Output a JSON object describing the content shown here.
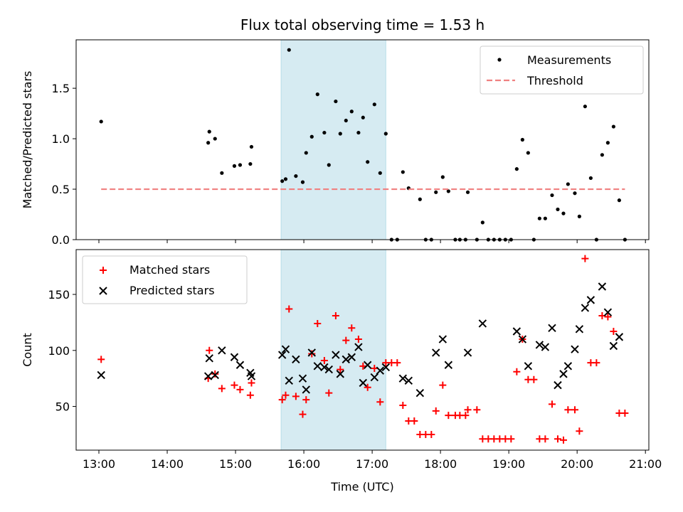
{
  "chart_data": [
    {
      "type": "scatter",
      "title": "Flux total observing time = 1.53 h",
      "xlabel": "",
      "ylabel": "Matched/Predicted stars",
      "xlim": [
        "12:40",
        "21:03"
      ],
      "ylim": [
        0.0,
        1.98
      ],
      "yticks": [
        "0.0",
        "0.5",
        "1.0",
        "1.5"
      ],
      "legend_position": "upper right",
      "shaded_span": {
        "from": "15:40",
        "to": "17:12",
        "color": "#add8e6"
      },
      "series": [
        {
          "name": "Measurements",
          "marker": "dot",
          "color": "#000000",
          "points": [
            [
              "13:02",
              1.17
            ],
            [
              "14:36",
              0.96
            ],
            [
              "14:37",
              1.07
            ],
            [
              "14:42",
              1.0
            ],
            [
              "14:48",
              0.66
            ],
            [
              "14:59",
              0.73
            ],
            [
              "15:04",
              0.74
            ],
            [
              "15:13",
              0.75
            ],
            [
              "15:14",
              0.92
            ],
            [
              "15:41",
              0.58
            ],
            [
              "15:44",
              0.6
            ],
            [
              "15:47",
              1.88
            ],
            [
              "15:53",
              0.63
            ],
            [
              "15:59",
              0.57
            ],
            [
              "16:02",
              0.86
            ],
            [
              "16:07",
              1.02
            ],
            [
              "16:12",
              1.44
            ],
            [
              "16:18",
              1.06
            ],
            [
              "16:22",
              0.74
            ],
            [
              "16:28",
              1.37
            ],
            [
              "16:32",
              1.05
            ],
            [
              "16:37",
              1.18
            ],
            [
              "16:42",
              1.27
            ],
            [
              "16:48",
              1.06
            ],
            [
              "16:52",
              1.21
            ],
            [
              "16:56",
              0.77
            ],
            [
              "17:02",
              1.34
            ],
            [
              "17:07",
              0.66
            ],
            [
              "17:12",
              1.05
            ],
            [
              "17:17",
              0.0
            ],
            [
              "17:22",
              0.0
            ],
            [
              "17:27",
              0.67
            ],
            [
              "17:32",
              0.51
            ],
            [
              "17:42",
              0.4
            ],
            [
              "17:47",
              0.0
            ],
            [
              "17:52",
              0.0
            ],
            [
              "17:56",
              0.47
            ],
            [
              "18:02",
              0.62
            ],
            [
              "18:07",
              0.48
            ],
            [
              "18:13",
              0.0
            ],
            [
              "18:17",
              0.0
            ],
            [
              "18:22",
              0.0
            ],
            [
              "18:24",
              0.47
            ],
            [
              "18:32",
              0.0
            ],
            [
              "18:37",
              0.17
            ],
            [
              "18:42",
              0.0
            ],
            [
              "18:47",
              0.0
            ],
            [
              "18:52",
              0.0
            ],
            [
              "18:57",
              0.0
            ],
            [
              "19:02",
              0.0
            ],
            [
              "19:07",
              0.7
            ],
            [
              "19:12",
              0.99
            ],
            [
              "19:17",
              0.86
            ],
            [
              "19:22",
              0.0
            ],
            [
              "19:27",
              0.21
            ],
            [
              "19:32",
              0.21
            ],
            [
              "19:38",
              0.44
            ],
            [
              "19:43",
              0.3
            ],
            [
              "19:48",
              0.26
            ],
            [
              "19:52",
              0.55
            ],
            [
              "19:58",
              0.46
            ],
            [
              "20:02",
              0.23
            ],
            [
              "20:07",
              1.32
            ],
            [
              "20:12",
              0.61
            ],
            [
              "20:17",
              0.0
            ],
            [
              "20:22",
              0.84
            ],
            [
              "20:27",
              0.96
            ],
            [
              "20:32",
              1.12
            ],
            [
              "20:37",
              0.39
            ],
            [
              "20:42",
              0.0
            ]
          ]
        },
        {
          "name": "Threshold",
          "marker": "dashed-line",
          "color": "#f08080",
          "points": [
            [
              "13:02",
              0.5
            ],
            [
              "20:42",
              0.5
            ]
          ]
        }
      ]
    },
    {
      "type": "scatter",
      "title": "",
      "xlabel": "Time (UTC)",
      "ylabel": "Count",
      "xlim": [
        "12:40",
        "21:03"
      ],
      "ylim": [
        11,
        190
      ],
      "yticks": [
        "50",
        "100",
        "150"
      ],
      "xticks": [
        "13:00",
        "14:00",
        "15:00",
        "16:00",
        "17:00",
        "18:00",
        "19:00",
        "20:00",
        "21:00"
      ],
      "legend_position": "upper left",
      "shaded_span": {
        "from": "15:40",
        "to": "17:12",
        "color": "#add8e6"
      },
      "series": [
        {
          "name": "Matched stars",
          "marker": "plus",
          "color": "#ff0000",
          "points": [
            [
              "13:02",
              92
            ],
            [
              "14:36",
              75
            ],
            [
              "14:37",
              100
            ],
            [
              "14:42",
              79
            ],
            [
              "14:48",
              66
            ],
            [
              "14:59",
              69
            ],
            [
              "15:04",
              65
            ],
            [
              "15:13",
              60
            ],
            [
              "15:14",
              71
            ],
            [
              "15:41",
              56
            ],
            [
              "15:44",
              60
            ],
            [
              "15:47",
              137
            ],
            [
              "15:53",
              59
            ],
            [
              "15:59",
              43
            ],
            [
              "16:02",
              56
            ],
            [
              "16:07",
              97
            ],
            [
              "16:12",
              124
            ],
            [
              "16:18",
              91
            ],
            [
              "16:22",
              62
            ],
            [
              "16:28",
              131
            ],
            [
              "16:32",
              83
            ],
            [
              "16:37",
              109
            ],
            [
              "16:42",
              120
            ],
            [
              "16:48",
              110
            ],
            [
              "16:52",
              86
            ],
            [
              "16:56",
              67
            ],
            [
              "17:02",
              84
            ],
            [
              "17:07",
              54
            ],
            [
              "17:12",
              89
            ],
            [
              "17:17",
              89
            ],
            [
              "17:22",
              89
            ],
            [
              "17:27",
              51
            ],
            [
              "17:32",
              37
            ],
            [
              "17:37",
              37
            ],
            [
              "17:42",
              25
            ],
            [
              "17:47",
              25
            ],
            [
              "17:52",
              25
            ],
            [
              "17:56",
              46
            ],
            [
              "18:02",
              69
            ],
            [
              "18:07",
              42
            ],
            [
              "18:13",
              42
            ],
            [
              "18:17",
              42
            ],
            [
              "18:22",
              42
            ],
            [
              "18:24",
              47
            ],
            [
              "18:32",
              47
            ],
            [
              "18:37",
              21
            ],
            [
              "18:42",
              21
            ],
            [
              "18:47",
              21
            ],
            [
              "18:52",
              21
            ],
            [
              "18:57",
              21
            ],
            [
              "19:02",
              21
            ],
            [
              "19:07",
              81
            ],
            [
              "19:12",
              110
            ],
            [
              "19:17",
              74
            ],
            [
              "19:22",
              74
            ],
            [
              "19:27",
              21
            ],
            [
              "19:32",
              21
            ],
            [
              "19:38",
              52
            ],
            [
              "19:43",
              21
            ],
            [
              "19:48",
              20
            ],
            [
              "19:52",
              47
            ],
            [
              "19:58",
              47
            ],
            [
              "20:02",
              28
            ],
            [
              "20:07",
              182
            ],
            [
              "20:12",
              89
            ],
            [
              "20:17",
              89
            ],
            [
              "20:22",
              131
            ],
            [
              "20:27",
              130
            ],
            [
              "20:32",
              117
            ],
            [
              "20:37",
              44
            ],
            [
              "20:42",
              44
            ]
          ]
        },
        {
          "name": "Predicted stars",
          "marker": "x",
          "color": "#000000",
          "points": [
            [
              "13:02",
              78
            ],
            [
              "14:36",
              77
            ],
            [
              "14:37",
              93
            ],
            [
              "14:42",
              78
            ],
            [
              "14:48",
              100
            ],
            [
              "14:59",
              94
            ],
            [
              "15:04",
              87
            ],
            [
              "15:13",
              80
            ],
            [
              "15:14",
              77
            ],
            [
              "15:41",
              96
            ],
            [
              "15:44",
              101
            ],
            [
              "15:47",
              73
            ],
            [
              "15:53",
              92
            ],
            [
              "15:59",
              75
            ],
            [
              "16:02",
              65
            ],
            [
              "16:07",
              98
            ],
            [
              "16:12",
              86
            ],
            [
              "16:18",
              85
            ],
            [
              "16:22",
              83
            ],
            [
              "16:28",
              96
            ],
            [
              "16:32",
              79
            ],
            [
              "16:37",
              92
            ],
            [
              "16:42",
              94
            ],
            [
              "16:48",
              103
            ],
            [
              "16:52",
              71
            ],
            [
              "16:56",
              87
            ],
            [
              "17:02",
              76
            ],
            [
              "17:07",
              82
            ],
            [
              "17:12",
              85
            ],
            [
              "17:27",
              75
            ],
            [
              "17:32",
              73
            ],
            [
              "17:42",
              62
            ],
            [
              "17:56",
              98
            ],
            [
              "18:02",
              110
            ],
            [
              "18:07",
              87
            ],
            [
              "18:24",
              98
            ],
            [
              "18:37",
              124
            ],
            [
              "19:07",
              117
            ],
            [
              "19:12",
              110
            ],
            [
              "19:17",
              86
            ],
            [
              "19:27",
              105
            ],
            [
              "19:32",
              103
            ],
            [
              "19:38",
              120
            ],
            [
              "19:43",
              69
            ],
            [
              "19:48",
              79
            ],
            [
              "19:52",
              86
            ],
            [
              "19:58",
              101
            ],
            [
              "20:02",
              119
            ],
            [
              "20:07",
              138
            ],
            [
              "20:12",
              145
            ],
            [
              "20:22",
              157
            ],
            [
              "20:27",
              134
            ],
            [
              "20:32",
              104
            ],
            [
              "20:37",
              112
            ]
          ]
        }
      ]
    }
  ]
}
